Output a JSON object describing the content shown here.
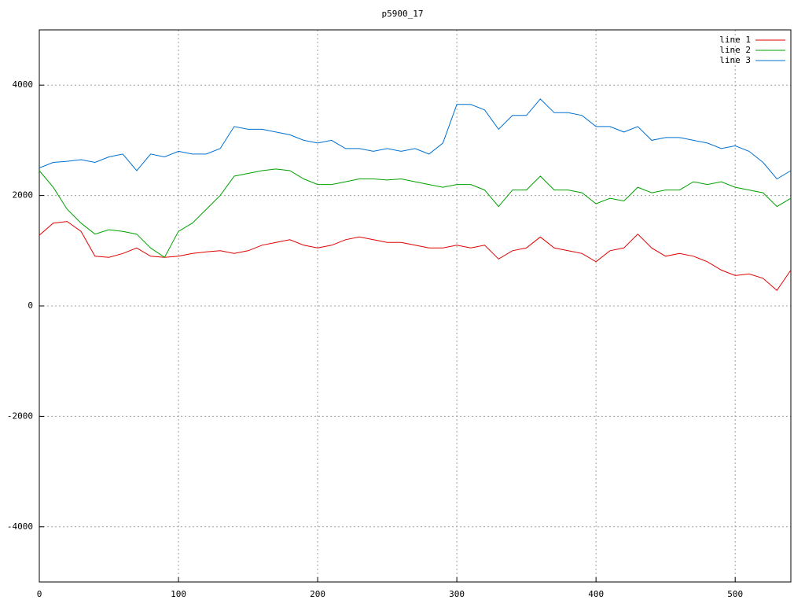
{
  "chart_data": {
    "type": "line",
    "title": "p5900_17",
    "x": [
      0,
      10,
      20,
      30,
      40,
      50,
      60,
      70,
      80,
      90,
      100,
      110,
      120,
      130,
      140,
      150,
      160,
      170,
      180,
      190,
      200,
      210,
      220,
      230,
      240,
      250,
      260,
      270,
      280,
      290,
      300,
      310,
      320,
      330,
      340,
      350,
      360,
      370,
      380,
      390,
      400,
      410,
      420,
      430,
      440,
      450,
      460,
      470,
      480,
      490,
      500,
      510,
      520,
      530,
      540
    ],
    "series": [
      {
        "name": "line 1",
        "color": "#e00000",
        "values": [
          1280,
          1500,
          1530,
          1350,
          900,
          880,
          950,
          1050,
          900,
          880,
          900,
          950,
          980,
          1000,
          950,
          1000,
          1100,
          1150,
          1200,
          1100,
          1050,
          1100,
          1200,
          1250,
          1200,
          1150,
          1150,
          1100,
          1050,
          1050,
          1100,
          1050,
          1100,
          850,
          1000,
          1050,
          1250,
          1050,
          1000,
          950,
          800,
          1000,
          1050,
          1300,
          1050,
          900,
          950,
          900,
          800,
          650,
          550,
          580,
          500,
          280,
          650
        ]
      },
      {
        "name": "line 2",
        "color": "#00a000",
        "values": [
          2450,
          2150,
          1750,
          1500,
          1300,
          1380,
          1350,
          1300,
          1050,
          880,
          1350,
          1500,
          1750,
          2000,
          2350,
          2400,
          2450,
          2480,
          2450,
          2300,
          2200,
          2200,
          2250,
          2300,
          2300,
          2280,
          2300,
          2250,
          2200,
          2150,
          2200,
          2200,
          2100,
          1800,
          2100,
          2100,
          2350,
          2100,
          2100,
          2050,
          1850,
          1950,
          1900,
          2150,
          2050,
          2100,
          2100,
          2250,
          2200,
          2250,
          2150,
          2100,
          2050,
          1800,
          1950
        ]
      },
      {
        "name": "line 3",
        "color": "#0070d0",
        "values": [
          2500,
          2600,
          2620,
          2650,
          2600,
          2700,
          2750,
          2450,
          2750,
          2700,
          2800,
          2750,
          2750,
          2850,
          3250,
          3200,
          3200,
          3150,
          3100,
          3000,
          2950,
          3000,
          2850,
          2850,
          2800,
          2850,
          2800,
          2850,
          2750,
          2950,
          3650,
          3650,
          3550,
          3200,
          3450,
          3450,
          3750,
          3500,
          3500,
          3450,
          3250,
          3250,
          3150,
          3250,
          3000,
          3050,
          3050,
          3000,
          2950,
          2850,
          2900,
          2800,
          2600,
          2300,
          2450
        ]
      }
    ],
    "xlim": [
      0,
      540
    ],
    "ylim": [
      -5000,
      5000
    ],
    "xticks": [
      0,
      100,
      200,
      300,
      400,
      500
    ],
    "yticks": [
      -4000,
      -2000,
      0,
      2000,
      4000
    ],
    "grid": true,
    "legend": "top-right"
  }
}
